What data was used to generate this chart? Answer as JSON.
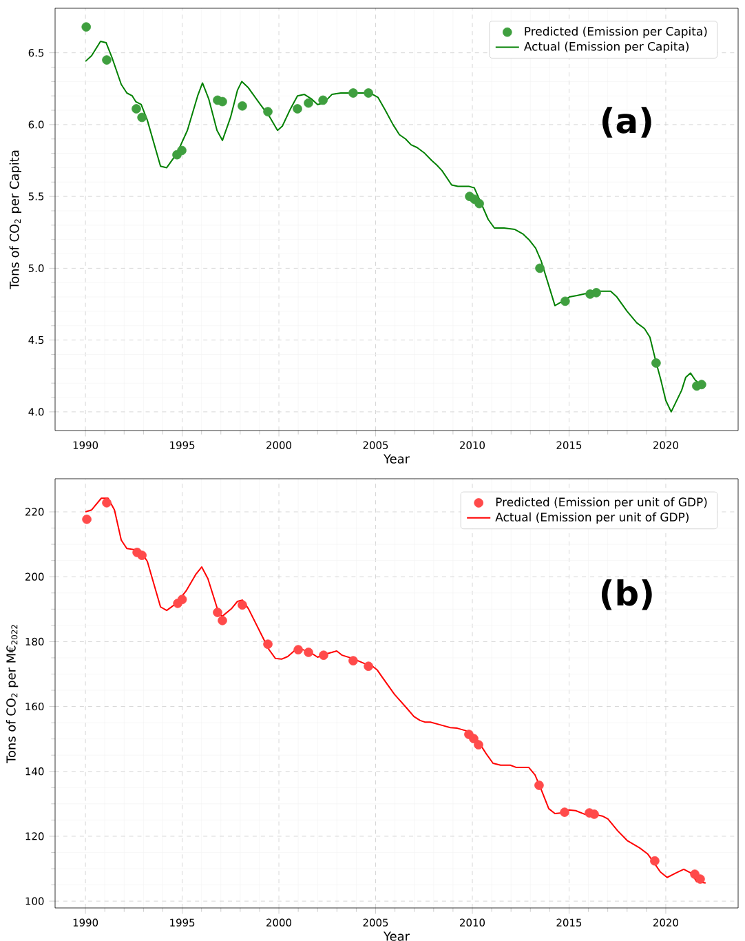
{
  "chart_data": [
    {
      "type": "line",
      "xlabel": "Year",
      "ylabel": "Tons of CO$_{2}$ per Capita",
      "annotations": [
        "(a)"
      ],
      "xlim": [
        1988.43,
        2023.74
      ],
      "ylim": [
        3.87,
        6.81
      ],
      "xticks": [
        1990,
        1995,
        2000,
        2005,
        2010,
        2015,
        2020
      ],
      "yticks": [
        {
          "value": 4.0,
          "label": "4.0"
        },
        {
          "value": 4.5,
          "label": "4.5"
        },
        {
          "value": 5.0,
          "label": "5.0"
        },
        {
          "value": 5.5,
          "label": "5.5"
        },
        {
          "value": 6.0,
          "label": "6.0"
        },
        {
          "value": 6.5,
          "label": "6.5"
        }
      ],
      "grid": true,
      "legend": "top right",
      "series": [
        {
          "name": "Predicted (Emission per Capita)",
          "type": "scatter",
          "color": "#3f9f3f",
          "x": [
            1990.04,
            1991.1,
            1992.63,
            1992.92,
            1994.73,
            1994.98,
            1996.83,
            1997.08,
            1998.11,
            1999.43,
            2000.96,
            2001.53,
            2002.28,
            2003.84,
            2004.63,
            2009.86,
            2010.11,
            2010.36,
            2013.49,
            2014.8,
            2016.09,
            2016.41,
            2019.5,
            2021.6,
            2021.85
          ],
          "values": [
            6.68,
            6.45,
            6.11,
            6.05,
            5.79,
            5.82,
            6.17,
            6.16,
            6.13,
            6.09,
            6.11,
            6.15,
            6.17,
            6.22,
            6.22,
            5.5,
            5.48,
            5.45,
            5.0,
            4.77,
            4.82,
            4.83,
            4.34,
            4.18,
            4.19
          ]
        },
        {
          "name": "Actual (Emission per Capita)",
          "type": "line",
          "color": "#008000",
          "x": [
            1990.0,
            1990.32,
            1990.78,
            1991.07,
            1991.39,
            1991.85,
            1992.14,
            1992.42,
            1992.6,
            1992.88,
            1993.2,
            1993.88,
            1994.2,
            1994.73,
            1995.27,
            1995.8,
            1996.05,
            1996.37,
            1996.8,
            1997.08,
            1997.5,
            1997.86,
            1998.08,
            1998.4,
            1999.04,
            1999.54,
            1999.93,
            2000.18,
            2000.6,
            2000.96,
            2001.32,
            2001.67,
            2002.0,
            2002.31,
            2002.74,
            2003.2,
            2003.74,
            2004.73,
            2005.12,
            2005.5,
            2005.9,
            2006.23,
            2006.55,
            2006.83,
            2007.15,
            2007.54,
            2007.9,
            2008.15,
            2008.43,
            2008.93,
            2009.25,
            2009.82,
            2010.1,
            2010.43,
            2010.82,
            2011.14,
            2011.64,
            2012.2,
            2012.6,
            2012.92,
            2013.27,
            2013.56,
            2013.95,
            2014.27,
            2014.66,
            2015.02,
            2015.41,
            2016.09,
            2016.62,
            2017.15,
            2017.47,
            2018.0,
            2018.5,
            2018.9,
            2019.18,
            2019.47,
            2019.75,
            2020.0,
            2020.28,
            2020.82,
            2021.03,
            2021.28,
            2021.53,
            2021.82,
            2022.0
          ],
          "values": [
            6.44,
            6.48,
            6.58,
            6.57,
            6.46,
            6.28,
            6.22,
            6.2,
            6.16,
            6.14,
            6.03,
            5.71,
            5.7,
            5.8,
            5.96,
            6.2,
            6.29,
            6.18,
            5.96,
            5.89,
            6.05,
            6.24,
            6.3,
            6.26,
            6.14,
            6.05,
            5.96,
            5.99,
            6.11,
            6.2,
            6.21,
            6.18,
            6.14,
            6.15,
            6.21,
            6.22,
            6.22,
            6.22,
            6.19,
            6.1,
            6.0,
            5.93,
            5.9,
            5.86,
            5.84,
            5.8,
            5.75,
            5.72,
            5.68,
            5.58,
            5.57,
            5.57,
            5.56,
            5.46,
            5.34,
            5.28,
            5.28,
            5.27,
            5.24,
            5.2,
            5.14,
            5.05,
            4.88,
            4.74,
            4.77,
            4.8,
            4.81,
            4.83,
            4.84,
            4.84,
            4.8,
            4.7,
            4.62,
            4.58,
            4.52,
            4.36,
            4.22,
            4.08,
            4.0,
            4.15,
            4.24,
            4.27,
            4.22,
            4.19,
            4.17
          ]
        }
      ]
    },
    {
      "type": "line",
      "xlabel": "Year",
      "ylabel": "Tons of CO$_{2}$ per M€$_{2022}$",
      "annotations": [
        "(b)"
      ],
      "xlim": [
        1988.43,
        2023.74
      ],
      "ylim": [
        97.9,
        230.2
      ],
      "xticks": [
        1990,
        1995,
        2000,
        2005,
        2010,
        2015,
        2020
      ],
      "yticks": [
        100,
        120,
        140,
        160,
        180,
        200,
        220
      ],
      "grid": true,
      "legend": "top right",
      "series": [
        {
          "name": "Predicted (Emission per unit of GDP)",
          "type": "scatter",
          "color": "#ff4a4a",
          "x": [
            1990.07,
            1991.1,
            1992.67,
            1992.92,
            1994.77,
            1995.0,
            1996.83,
            1997.08,
            1998.11,
            1999.43,
            2001.0,
            2001.53,
            2002.31,
            2003.84,
            2004.63,
            2009.82,
            2010.07,
            2010.32,
            2013.45,
            2014.77,
            2016.05,
            2016.3,
            2019.43,
            2021.5,
            2021.78
          ],
          "values": [
            217.7,
            222.8,
            207.5,
            206.6,
            191.8,
            193.0,
            189.0,
            186.5,
            191.3,
            179.2,
            177.5,
            176.7,
            175.8,
            174.1,
            172.4,
            151.4,
            150.1,
            148.2,
            135.7,
            127.4,
            127.2,
            126.8,
            112.4,
            108.3,
            106.8
          ]
        },
        {
          "name": "Actual (Emission per unit of GDP)",
          "type": "line",
          "color": "#ff0000",
          "x": [
            1990.0,
            1990.32,
            1990.82,
            1991.17,
            1991.5,
            1991.85,
            1992.14,
            1992.6,
            1992.95,
            1993.2,
            1993.88,
            1994.2,
            1994.7,
            1995.2,
            1995.7,
            1996.01,
            1996.33,
            1996.8,
            1997.05,
            1997.54,
            1997.86,
            1998.11,
            1998.43,
            1999.47,
            1999.82,
            2000.14,
            2000.46,
            2000.96,
            2001.35,
            2001.67,
            2002.0,
            2002.38,
            2002.99,
            2003.27,
            2003.81,
            2004.48,
            2004.73,
            2005.09,
            2005.37,
            2005.98,
            2006.58,
            2006.98,
            2007.3,
            2007.54,
            2007.83,
            2008.43,
            2008.86,
            2009.22,
            2009.68,
            2009.93,
            2010.28,
            2010.71,
            2011.07,
            2011.46,
            2011.96,
            2012.28,
            2012.92,
            2013.24,
            2013.56,
            2013.95,
            2014.27,
            2014.63,
            2014.98,
            2015.34,
            2015.8,
            2016.41,
            2016.73,
            2017.01,
            2017.51,
            2018.0,
            2018.65,
            2019.07,
            2019.36,
            2019.72,
            2020.07,
            2020.57,
            2020.93,
            2021.32,
            2021.6,
            2022.06
          ],
          "values": [
            220.0,
            220.6,
            224.2,
            224.2,
            220.6,
            211.3,
            208.7,
            208.3,
            207.0,
            204.7,
            190.7,
            189.6,
            191.8,
            195.6,
            200.7,
            203.0,
            199.4,
            190.5,
            187.7,
            190.1,
            192.4,
            192.8,
            190.1,
            177.7,
            174.8,
            174.6,
            175.4,
            178.0,
            177.3,
            176.5,
            175.2,
            176.1,
            177.1,
            175.8,
            174.8,
            173.1,
            172.9,
            171.2,
            168.8,
            163.7,
            159.7,
            156.9,
            155.7,
            155.2,
            155.2,
            154.2,
            153.5,
            153.3,
            152.5,
            151.4,
            149.5,
            145.5,
            142.5,
            141.9,
            141.9,
            141.2,
            141.2,
            138.9,
            134.4,
            128.5,
            127.0,
            127.2,
            128.1,
            127.9,
            126.8,
            126.6,
            126.2,
            125.3,
            121.7,
            118.7,
            116.4,
            114.5,
            112.1,
            109.0,
            107.3,
            108.8,
            109.8,
            108.6,
            106.0,
            105.6
          ]
        }
      ]
    }
  ]
}
